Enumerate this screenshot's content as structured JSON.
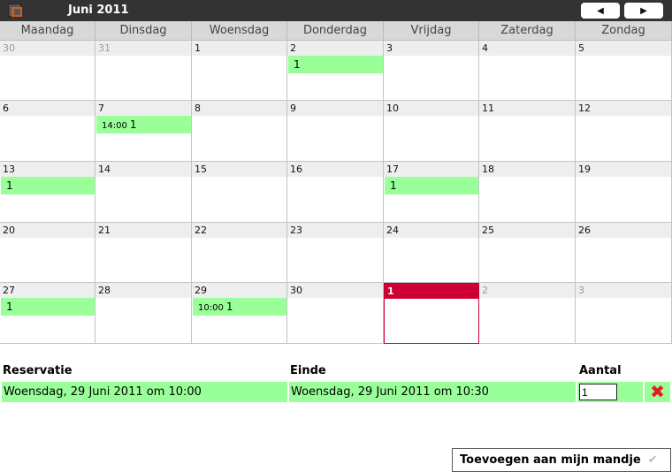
{
  "header": {
    "title": "Juni 2011",
    "prev_icon": "triangle-left-icon",
    "next_icon": "triangle-right-icon",
    "prev_glyph": "◀",
    "next_glyph": "▶"
  },
  "weekdays": [
    "Maandag",
    "Dinsdag",
    "Woensdag",
    "Donderdag",
    "Vrijdag",
    "Zaterdag",
    "Zondag"
  ],
  "colors": {
    "event": "#99ff99",
    "today": "#cc0033",
    "topbar": "#333333"
  },
  "weeks": [
    [
      {
        "day": "30",
        "muted": true
      },
      {
        "day": "31",
        "muted": true
      },
      {
        "day": "1"
      },
      {
        "day": "2",
        "events": [
          {
            "count": "1"
          }
        ]
      },
      {
        "day": "3"
      },
      {
        "day": "4"
      },
      {
        "day": "5"
      }
    ],
    [
      {
        "day": "6"
      },
      {
        "day": "7",
        "events": [
          {
            "time": "14:00",
            "count": "1"
          }
        ]
      },
      {
        "day": "8"
      },
      {
        "day": "9"
      },
      {
        "day": "10"
      },
      {
        "day": "11"
      },
      {
        "day": "12"
      }
    ],
    [
      {
        "day": "13",
        "events": [
          {
            "count": "1"
          }
        ]
      },
      {
        "day": "14"
      },
      {
        "day": "15"
      },
      {
        "day": "16"
      },
      {
        "day": "17",
        "events": [
          {
            "count": "1"
          }
        ]
      },
      {
        "day": "18"
      },
      {
        "day": "19"
      }
    ],
    [
      {
        "day": "20"
      },
      {
        "day": "21"
      },
      {
        "day": "22"
      },
      {
        "day": "23"
      },
      {
        "day": "24"
      },
      {
        "day": "25"
      },
      {
        "day": "26"
      }
    ],
    [
      {
        "day": "27",
        "events": [
          {
            "count": "1"
          }
        ]
      },
      {
        "day": "28"
      },
      {
        "day": "29",
        "events": [
          {
            "time": "10:00",
            "count": "1"
          }
        ]
      },
      {
        "day": "30"
      },
      {
        "day": "1",
        "today": true
      },
      {
        "day": "2",
        "muted": true
      },
      {
        "day": "3",
        "muted": true
      }
    ]
  ],
  "reservations": {
    "headers": {
      "start": "Reservatie",
      "end": "Einde",
      "qty": "Aantal"
    },
    "rows": [
      {
        "start": "Woensdag, 29 Juni 2011 om 10:00",
        "end": "Woensdag, 29 Juni 2011 om 10:30",
        "qty": "1",
        "delete_glyph": "✖"
      }
    ]
  },
  "add_button": {
    "label": "Toevoegen aan mijn mandje",
    "check_glyph": "✔"
  }
}
